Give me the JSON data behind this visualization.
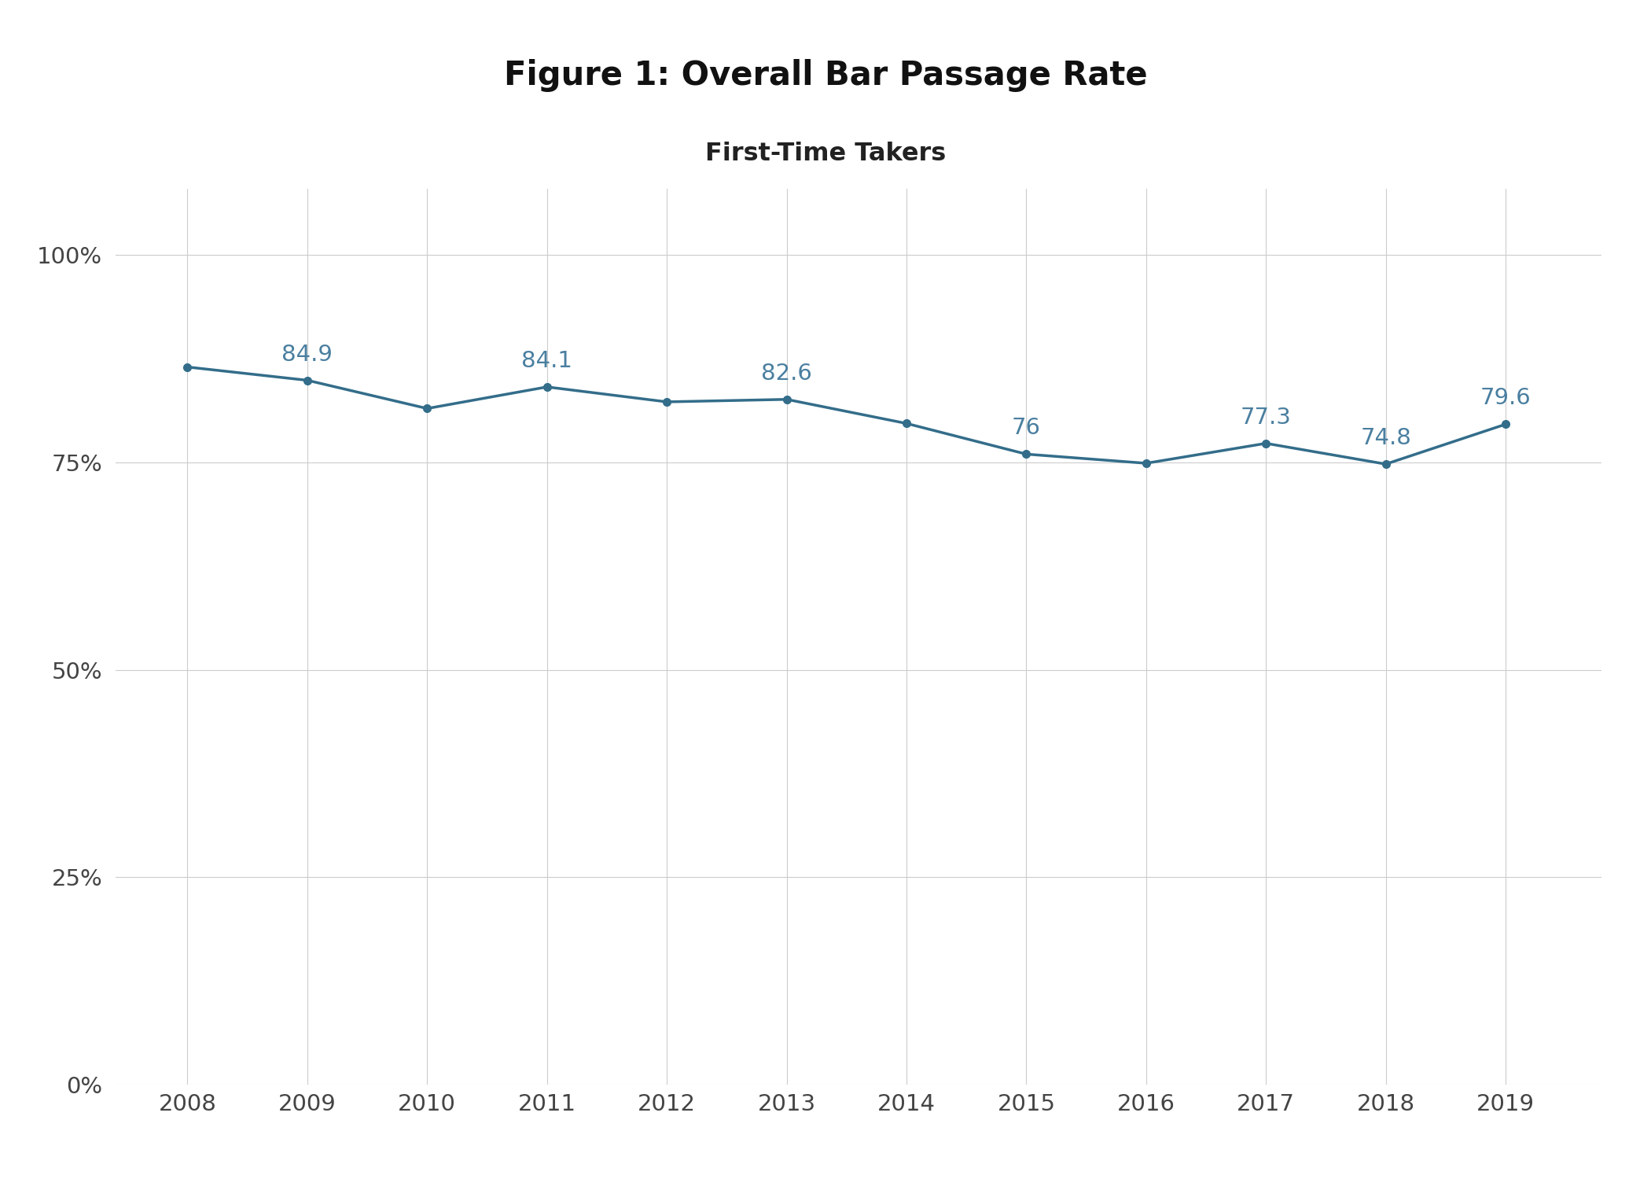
{
  "title": "Figure 1: Overall Bar Passage Rate",
  "subtitle": "First-Time Takers",
  "years": [
    2008,
    2009,
    2010,
    2011,
    2012,
    2013,
    2014,
    2015,
    2016,
    2017,
    2018,
    2019
  ],
  "values": [
    86.5,
    84.9,
    81.5,
    84.1,
    82.3,
    82.6,
    79.7,
    76.0,
    74.9,
    77.3,
    74.8,
    79.6
  ],
  "label_texts": {
    "2009": "84.9",
    "2011": "84.1",
    "2013": "82.6",
    "2015": "76",
    "2017": "77.3",
    "2018": "74.8",
    "2019": "79.6"
  },
  "line_color": "#336d8a",
  "marker_color": "#336d8a",
  "label_color": "#4a7fa0",
  "grid_color": "#cccccc",
  "bg_color": "#ffffff",
  "title_fontsize": 30,
  "subtitle_fontsize": 23,
  "tick_fontsize": 21,
  "label_fontsize": 21,
  "ylim": [
    0,
    108
  ],
  "yticks": [
    0,
    25,
    50,
    75,
    100
  ],
  "ytick_labels": [
    "0%",
    "25%",
    "50%",
    "75%",
    "100%"
  ],
  "xlim_left": 2007.4,
  "xlim_right": 2019.8
}
